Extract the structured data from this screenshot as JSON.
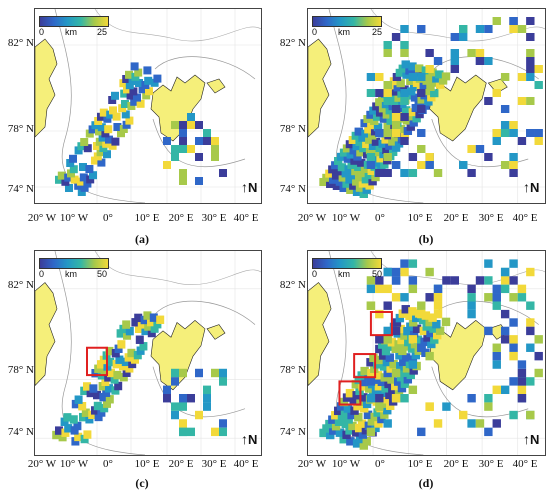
{
  "axes": {
    "lat_labels": [
      "82° N",
      "78° N",
      "74° N"
    ],
    "lon_labels": [
      "20° W",
      "10° W",
      "0°",
      "10° E",
      "20° E",
      "30° E",
      "40° E"
    ]
  },
  "north_arrow": {
    "glyph": "↑",
    "letter": "N"
  },
  "colors": {
    "land": "#f5ef7a",
    "ocean": "#ffffff",
    "highlight_box": "#e02020"
  },
  "panels": [
    {
      "id": "a",
      "caption": "(a)",
      "colorbar": {
        "min": "0",
        "unit": "km",
        "max": "25"
      }
    },
    {
      "id": "b",
      "caption": "(b)",
      "colorbar": {
        "min": "0",
        "unit": "km",
        "max": "25"
      }
    },
    {
      "id": "c",
      "caption": "(c)",
      "colorbar": {
        "min": "0",
        "unit": "km",
        "max": "50"
      }
    },
    {
      "id": "d",
      "caption": "(d)",
      "colorbar": {
        "min": "0",
        "unit": "km",
        "max": "50"
      }
    }
  ]
}
